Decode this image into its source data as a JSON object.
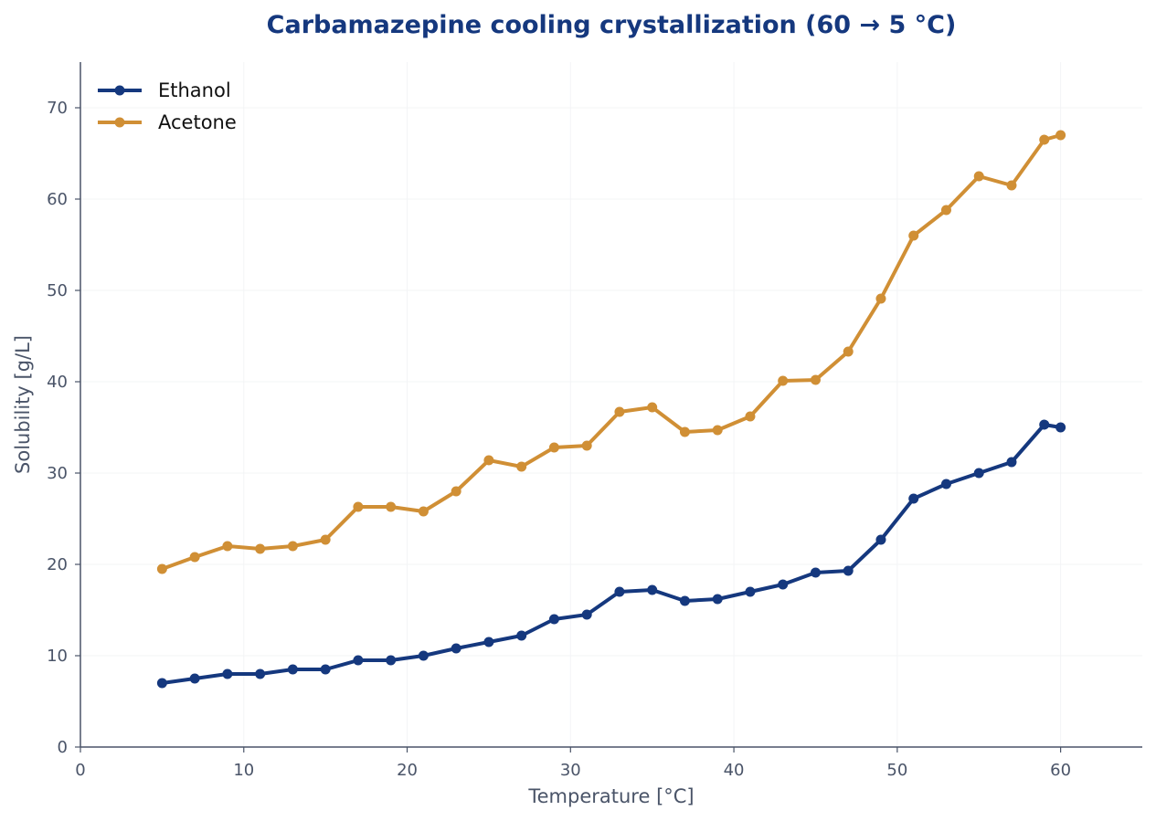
{
  "chart_data": {
    "type": "line",
    "title": "Carbamazepine cooling crystallization (60 → 5 °C)",
    "xlabel": "Temperature [°C]",
    "ylabel": "Solubility [g/L]",
    "xlim": [
      0,
      65
    ],
    "ylim": [
      0,
      75
    ],
    "x_ticks": [
      0,
      10,
      20,
      30,
      40,
      50,
      60
    ],
    "y_ticks": [
      0,
      10,
      20,
      30,
      40,
      50,
      60,
      70
    ],
    "grid": true,
    "legend_position": "top-left",
    "x": [
      5,
      7,
      9,
      11,
      13,
      15,
      17,
      19,
      21,
      23,
      25,
      27,
      29,
      31,
      33,
      35,
      37,
      39,
      41,
      43,
      45,
      47,
      49,
      51,
      53,
      55,
      57,
      59,
      60
    ],
    "series": [
      {
        "name": "Ethanol",
        "color": "#15387e",
        "values": [
          7.0,
          7.5,
          8.0,
          8.0,
          8.5,
          8.5,
          9.5,
          9.5,
          10.0,
          10.8,
          11.5,
          12.2,
          14.0,
          14.5,
          17.0,
          17.2,
          16.0,
          16.2,
          17.0,
          17.8,
          19.1,
          19.3,
          22.7,
          27.2,
          28.8,
          30.0,
          31.2,
          35.3,
          35.0
        ]
      },
      {
        "name": "Acetone",
        "color": "#d08f35",
        "values": [
          19.5,
          20.8,
          22.0,
          21.7,
          22.0,
          22.7,
          26.3,
          26.3,
          25.8,
          28.0,
          31.4,
          30.7,
          32.8,
          33.0,
          36.7,
          37.2,
          34.5,
          34.7,
          36.2,
          40.1,
          40.2,
          43.3,
          49.1,
          56.0,
          58.8,
          62.5,
          61.5,
          66.5,
          67.0
        ]
      }
    ],
    "colors": {
      "title": "#15387e",
      "axis": "#4a5468",
      "grid": "#f3f4f6"
    }
  }
}
